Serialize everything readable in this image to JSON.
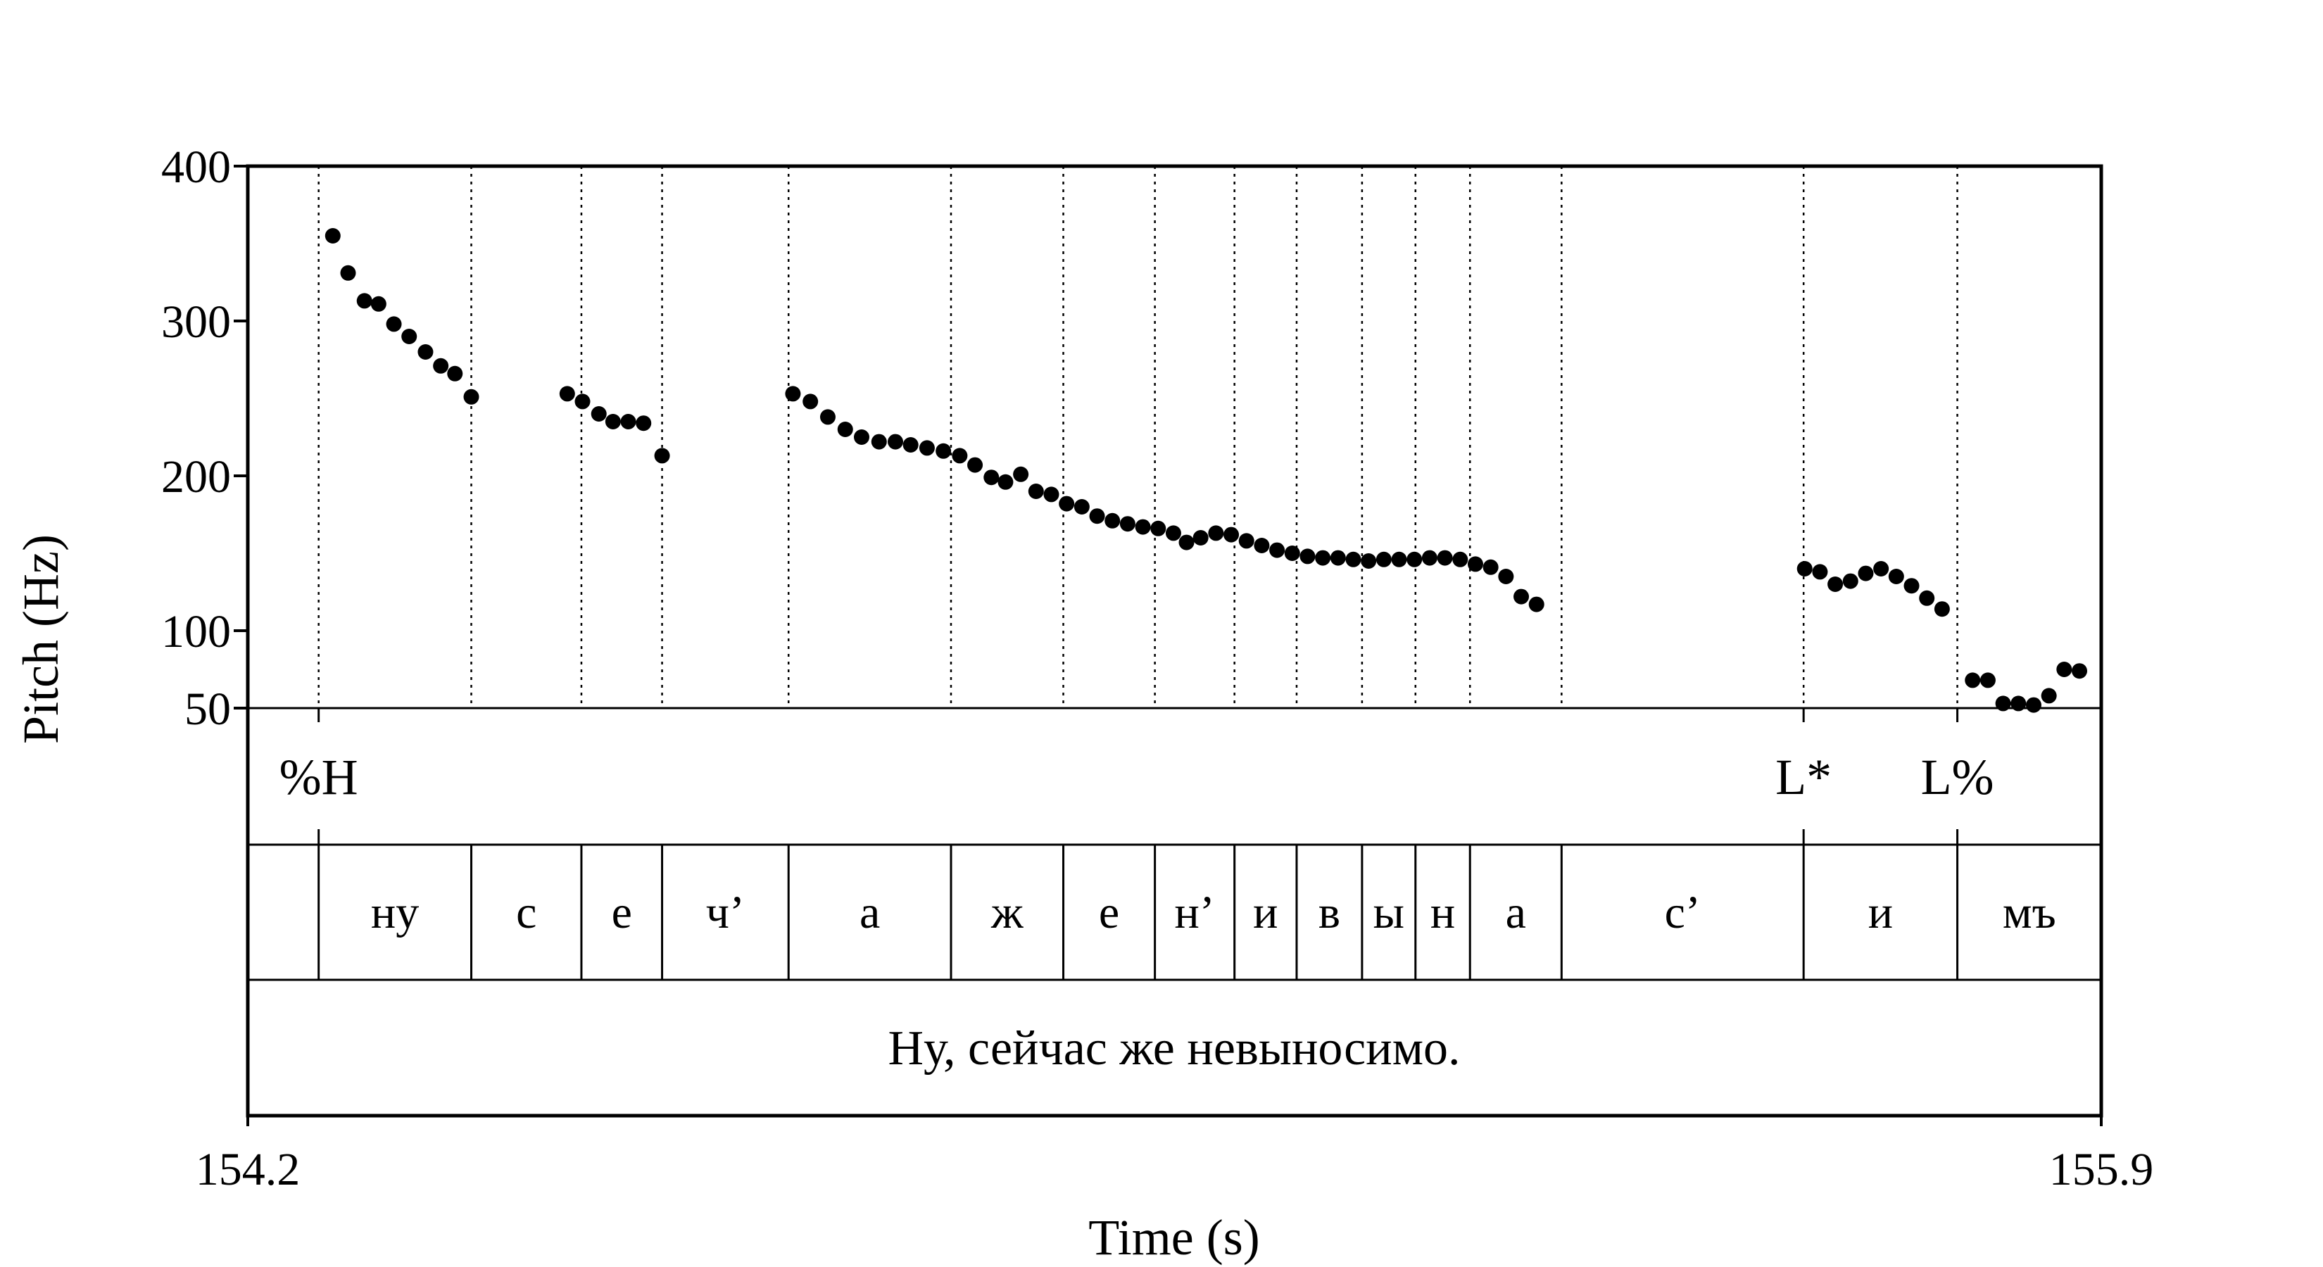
{
  "chart_data": {
    "type": "scatter",
    "xlabel": "Time (s)",
    "ylabel": "Pitch (Hz)",
    "xlim": [
      154.2,
      155.9
    ],
    "x_tick_labels": [
      "154.2",
      "155.9"
    ],
    "ylim_top": [
      50,
      400
    ],
    "y_ticks": [
      {
        "value": 50,
        "label": "50"
      },
      {
        "value": 100,
        "label": "100"
      },
      {
        "value": 200,
        "label": "200"
      },
      {
        "value": 300,
        "label": "300"
      },
      {
        "value": 400,
        "label": "400"
      }
    ],
    "y_scale_note": "pitch axis: 100–400 linear; 100→50 compressed",
    "pitch_points": [
      [
        154.278,
        355
      ],
      [
        154.292,
        331
      ],
      [
        154.307,
        313
      ],
      [
        154.32,
        311
      ],
      [
        154.334,
        298
      ],
      [
        154.348,
        290
      ],
      [
        154.363,
        280
      ],
      [
        154.377,
        271
      ],
      [
        154.39,
        266
      ],
      [
        154.405,
        251
      ],
      [
        154.493,
        253
      ],
      [
        154.507,
        248
      ],
      [
        154.522,
        240
      ],
      [
        154.535,
        235
      ],
      [
        154.549,
        235
      ],
      [
        154.563,
        234
      ],
      [
        154.58,
        213
      ],
      [
        154.7,
        253
      ],
      [
        154.716,
        248
      ],
      [
        154.732,
        238
      ],
      [
        154.748,
        230
      ],
      [
        154.763,
        225
      ],
      [
        154.779,
        222
      ],
      [
        154.794,
        222
      ],
      [
        154.808,
        220
      ],
      [
        154.823,
        218
      ],
      [
        154.838,
        216
      ],
      [
        154.853,
        213
      ],
      [
        154.867,
        207
      ],
      [
        154.882,
        199
      ],
      [
        154.895,
        196
      ],
      [
        154.909,
        201
      ],
      [
        154.923,
        190
      ],
      [
        154.937,
        188
      ],
      [
        154.951,
        182
      ],
      [
        154.965,
        180
      ],
      [
        154.979,
        174
      ],
      [
        154.993,
        171
      ],
      [
        155.007,
        169
      ],
      [
        155.021,
        167
      ],
      [
        155.035,
        166
      ],
      [
        155.049,
        163
      ],
      [
        155.061,
        157
      ],
      [
        155.074,
        160
      ],
      [
        155.088,
        163
      ],
      [
        155.102,
        162
      ],
      [
        155.116,
        158
      ],
      [
        155.13,
        155
      ],
      [
        155.144,
        152
      ],
      [
        155.158,
        150
      ],
      [
        155.172,
        148
      ],
      [
        155.186,
        147
      ],
      [
        155.2,
        147
      ],
      [
        155.214,
        146
      ],
      [
        155.228,
        145
      ],
      [
        155.242,
        146
      ],
      [
        155.256,
        146
      ],
      [
        155.27,
        146
      ],
      [
        155.284,
        147
      ],
      [
        155.298,
        147
      ],
      [
        155.312,
        146
      ],
      [
        155.326,
        143
      ],
      [
        155.34,
        141
      ],
      [
        155.354,
        135
      ],
      [
        155.368,
        122
      ],
      [
        155.382,
        117
      ],
      [
        155.628,
        140
      ],
      [
        155.642,
        138
      ],
      [
        155.656,
        130
      ],
      [
        155.67,
        132
      ],
      [
        155.684,
        137
      ],
      [
        155.698,
        140
      ],
      [
        155.712,
        135
      ],
      [
        155.726,
        129
      ],
      [
        155.74,
        121
      ],
      [
        155.754,
        114
      ],
      [
        155.782,
        68
      ],
      [
        155.796,
        68
      ],
      [
        155.81,
        53
      ],
      [
        155.824,
        53
      ],
      [
        155.838,
        52
      ],
      [
        155.852,
        58
      ],
      [
        155.866,
        75
      ],
      [
        155.88,
        74
      ]
    ],
    "boundaries": [
      154.265,
      154.405,
      154.506,
      154.58,
      154.696,
      154.845,
      154.948,
      155.032,
      155.105,
      155.162,
      155.222,
      155.271,
      155.321,
      155.405,
      155.627,
      155.768
    ],
    "tones": [
      {
        "label": "%H",
        "t": 154.265
      },
      {
        "label": "L*",
        "t": 155.627
      },
      {
        "label": "L%",
        "t": 155.768
      }
    ],
    "segments": [
      {
        "label": "ну",
        "start": 154.265,
        "end": 154.405
      },
      {
        "label": "с",
        "start": 154.405,
        "end": 154.506
      },
      {
        "label": "е",
        "start": 154.506,
        "end": 154.58
      },
      {
        "label": "ч’",
        "start": 154.58,
        "end": 154.696
      },
      {
        "label": "а",
        "start": 154.696,
        "end": 154.845
      },
      {
        "label": "ж",
        "start": 154.845,
        "end": 154.948
      },
      {
        "label": "е",
        "start": 154.948,
        "end": 155.032
      },
      {
        "label": "н’",
        "start": 155.032,
        "end": 155.105
      },
      {
        "label": "и",
        "start": 155.105,
        "end": 155.162
      },
      {
        "label": "в",
        "start": 155.162,
        "end": 155.222
      },
      {
        "label": "ы",
        "start": 155.222,
        "end": 155.271
      },
      {
        "label": "н",
        "start": 155.271,
        "end": 155.321
      },
      {
        "label": "а",
        "start": 155.321,
        "end": 155.405
      },
      {
        "label": "с’",
        "start": 155.405,
        "end": 155.627
      },
      {
        "label": "и",
        "start": 155.627,
        "end": 155.768
      },
      {
        "label": "мъ",
        "start": 155.768,
        "end": 155.9
      }
    ],
    "sentence": "Ну, сейчас же невыносимо."
  }
}
